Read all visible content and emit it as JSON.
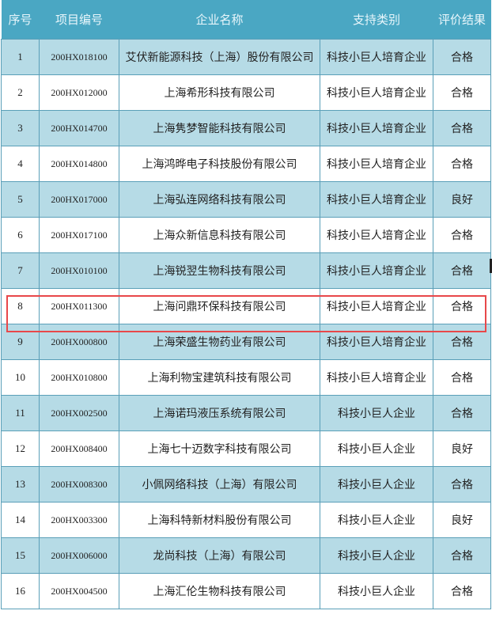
{
  "table": {
    "headers": [
      "序号",
      "项目编号",
      "企业名称",
      "支持类别",
      "评价结果"
    ],
    "rows": [
      [
        "1",
        "200HX018100",
        "艾伏新能源科技（上海）股份有限公司",
        "科技小巨人培育企业",
        "合格"
      ],
      [
        "2",
        "200HX012000",
        "上海希形科技有限公司",
        "科技小巨人培育企业",
        "合格"
      ],
      [
        "3",
        "200HX014700",
        "上海隽梦智能科技有限公司",
        "科技小巨人培育企业",
        "合格"
      ],
      [
        "4",
        "200HX014800",
        "上海鸿晔电子科技股份有限公司",
        "科技小巨人培育企业",
        "合格"
      ],
      [
        "5",
        "200HX017000",
        "上海弘连网络科技有限公司",
        "科技小巨人培育企业",
        "良好"
      ],
      [
        "6",
        "200HX017100",
        "上海众新信息科技有限公司",
        "科技小巨人培育企业",
        "合格"
      ],
      [
        "7",
        "200HX010100",
        "上海锐翌生物科技有限公司",
        "科技小巨人培育企业",
        "合格"
      ],
      [
        "8",
        "200HX011300",
        "上海问鼎环保科技有限公司",
        "科技小巨人培育企业",
        "合格"
      ],
      [
        "9",
        "200HX000800",
        "上海荣盛生物药业有限公司",
        "科技小巨人培育企业",
        "合格"
      ],
      [
        "10",
        "200HX010800",
        "上海利物宝建筑科技有限公司",
        "科技小巨人培育企业",
        "合格"
      ],
      [
        "11",
        "200HX002500",
        "上海诺玛液压系统有限公司",
        "科技小巨人企业",
        "合格"
      ],
      [
        "12",
        "200HX008400",
        "上海七十迈数字科技有限公司",
        "科技小巨人企业",
        "良好"
      ],
      [
        "13",
        "200HX008300",
        "小佩网络科技（上海）有限公司",
        "科技小巨人企业",
        "合格"
      ],
      [
        "14",
        "200HX003300",
        "上海科特新材料股份有限公司",
        "科技小巨人企业",
        "良好"
      ],
      [
        "15",
        "200HX006000",
        "龙尚科技（上海）有限公司",
        "科技小巨人企业",
        "合格"
      ],
      [
        "16",
        "200HX004500",
        "上海汇伦生物科技有限公司",
        "科技小巨人企业",
        "合格"
      ]
    ],
    "highlighted_row": "8"
  },
  "colors": {
    "header": "#4aa7c3",
    "stripe": "#b6dbe6",
    "highlight": "#e8484a"
  }
}
